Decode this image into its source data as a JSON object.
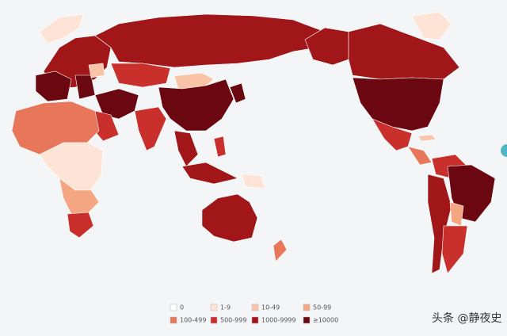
{
  "legend": [
    {
      "label": "0",
      "color": "#ffffff"
    },
    {
      "label": "1-9",
      "color": "#fde4d6"
    },
    {
      "label": "10-49",
      "color": "#f9c3a8"
    },
    {
      "label": "50-99",
      "color": "#f4a582"
    },
    {
      "label": "100-499",
      "color": "#e8765a"
    },
    {
      "label": "500-999",
      "color": "#c9302c"
    },
    {
      "label": "1000-9999",
      "color": "#a11619"
    },
    {
      "label": "≥10000",
      "color": "#6b0710"
    }
  ],
  "watermark": "头条 @静夜史"
}
